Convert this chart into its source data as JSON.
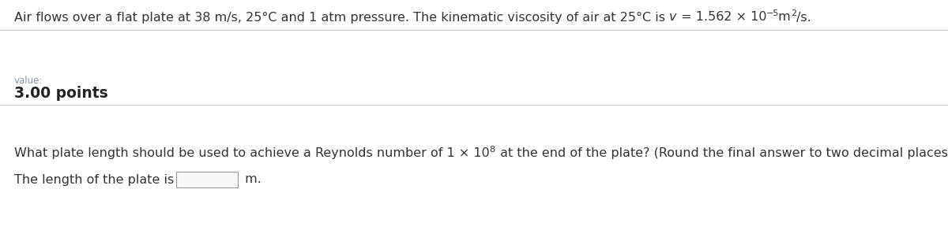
{
  "bg_color": "#ffffff",
  "text_color": "#333333",
  "value_color": "#8899aa",
  "points_color": "#222222",
  "divider_color": "#cccccc",
  "font_size_main": 11.5,
  "font_size_value": 8.5,
  "font_size_points": 13.5,
  "font_size_super": 8,
  "line1_pre": "Air flows over a flat plate at 38 m/s, 25°C and 1 atm pressure. The kinematic viscosity of air at 25°C is ",
  "line1_italic": "v",
  "line1_mid": " = 1.562 × 10",
  "line1_exp": "−5",
  "line1_unit": " m",
  "line1_unit_exp": "2",
  "line1_unit_end": "/s.",
  "value_label": "value:",
  "points_label": "3.00 points",
  "question_pre": "What plate length should be used to achieve a Reynolds number of 1 × 10",
  "question_exp": "8",
  "question_end": " at the end of the plate? (Round the final answer to two decimal places.)",
  "answer_prefix": "The length of the plate is",
  "answer_suffix": " m.",
  "figwidth": 12.0,
  "figheight": 2.92,
  "dpi": 100
}
